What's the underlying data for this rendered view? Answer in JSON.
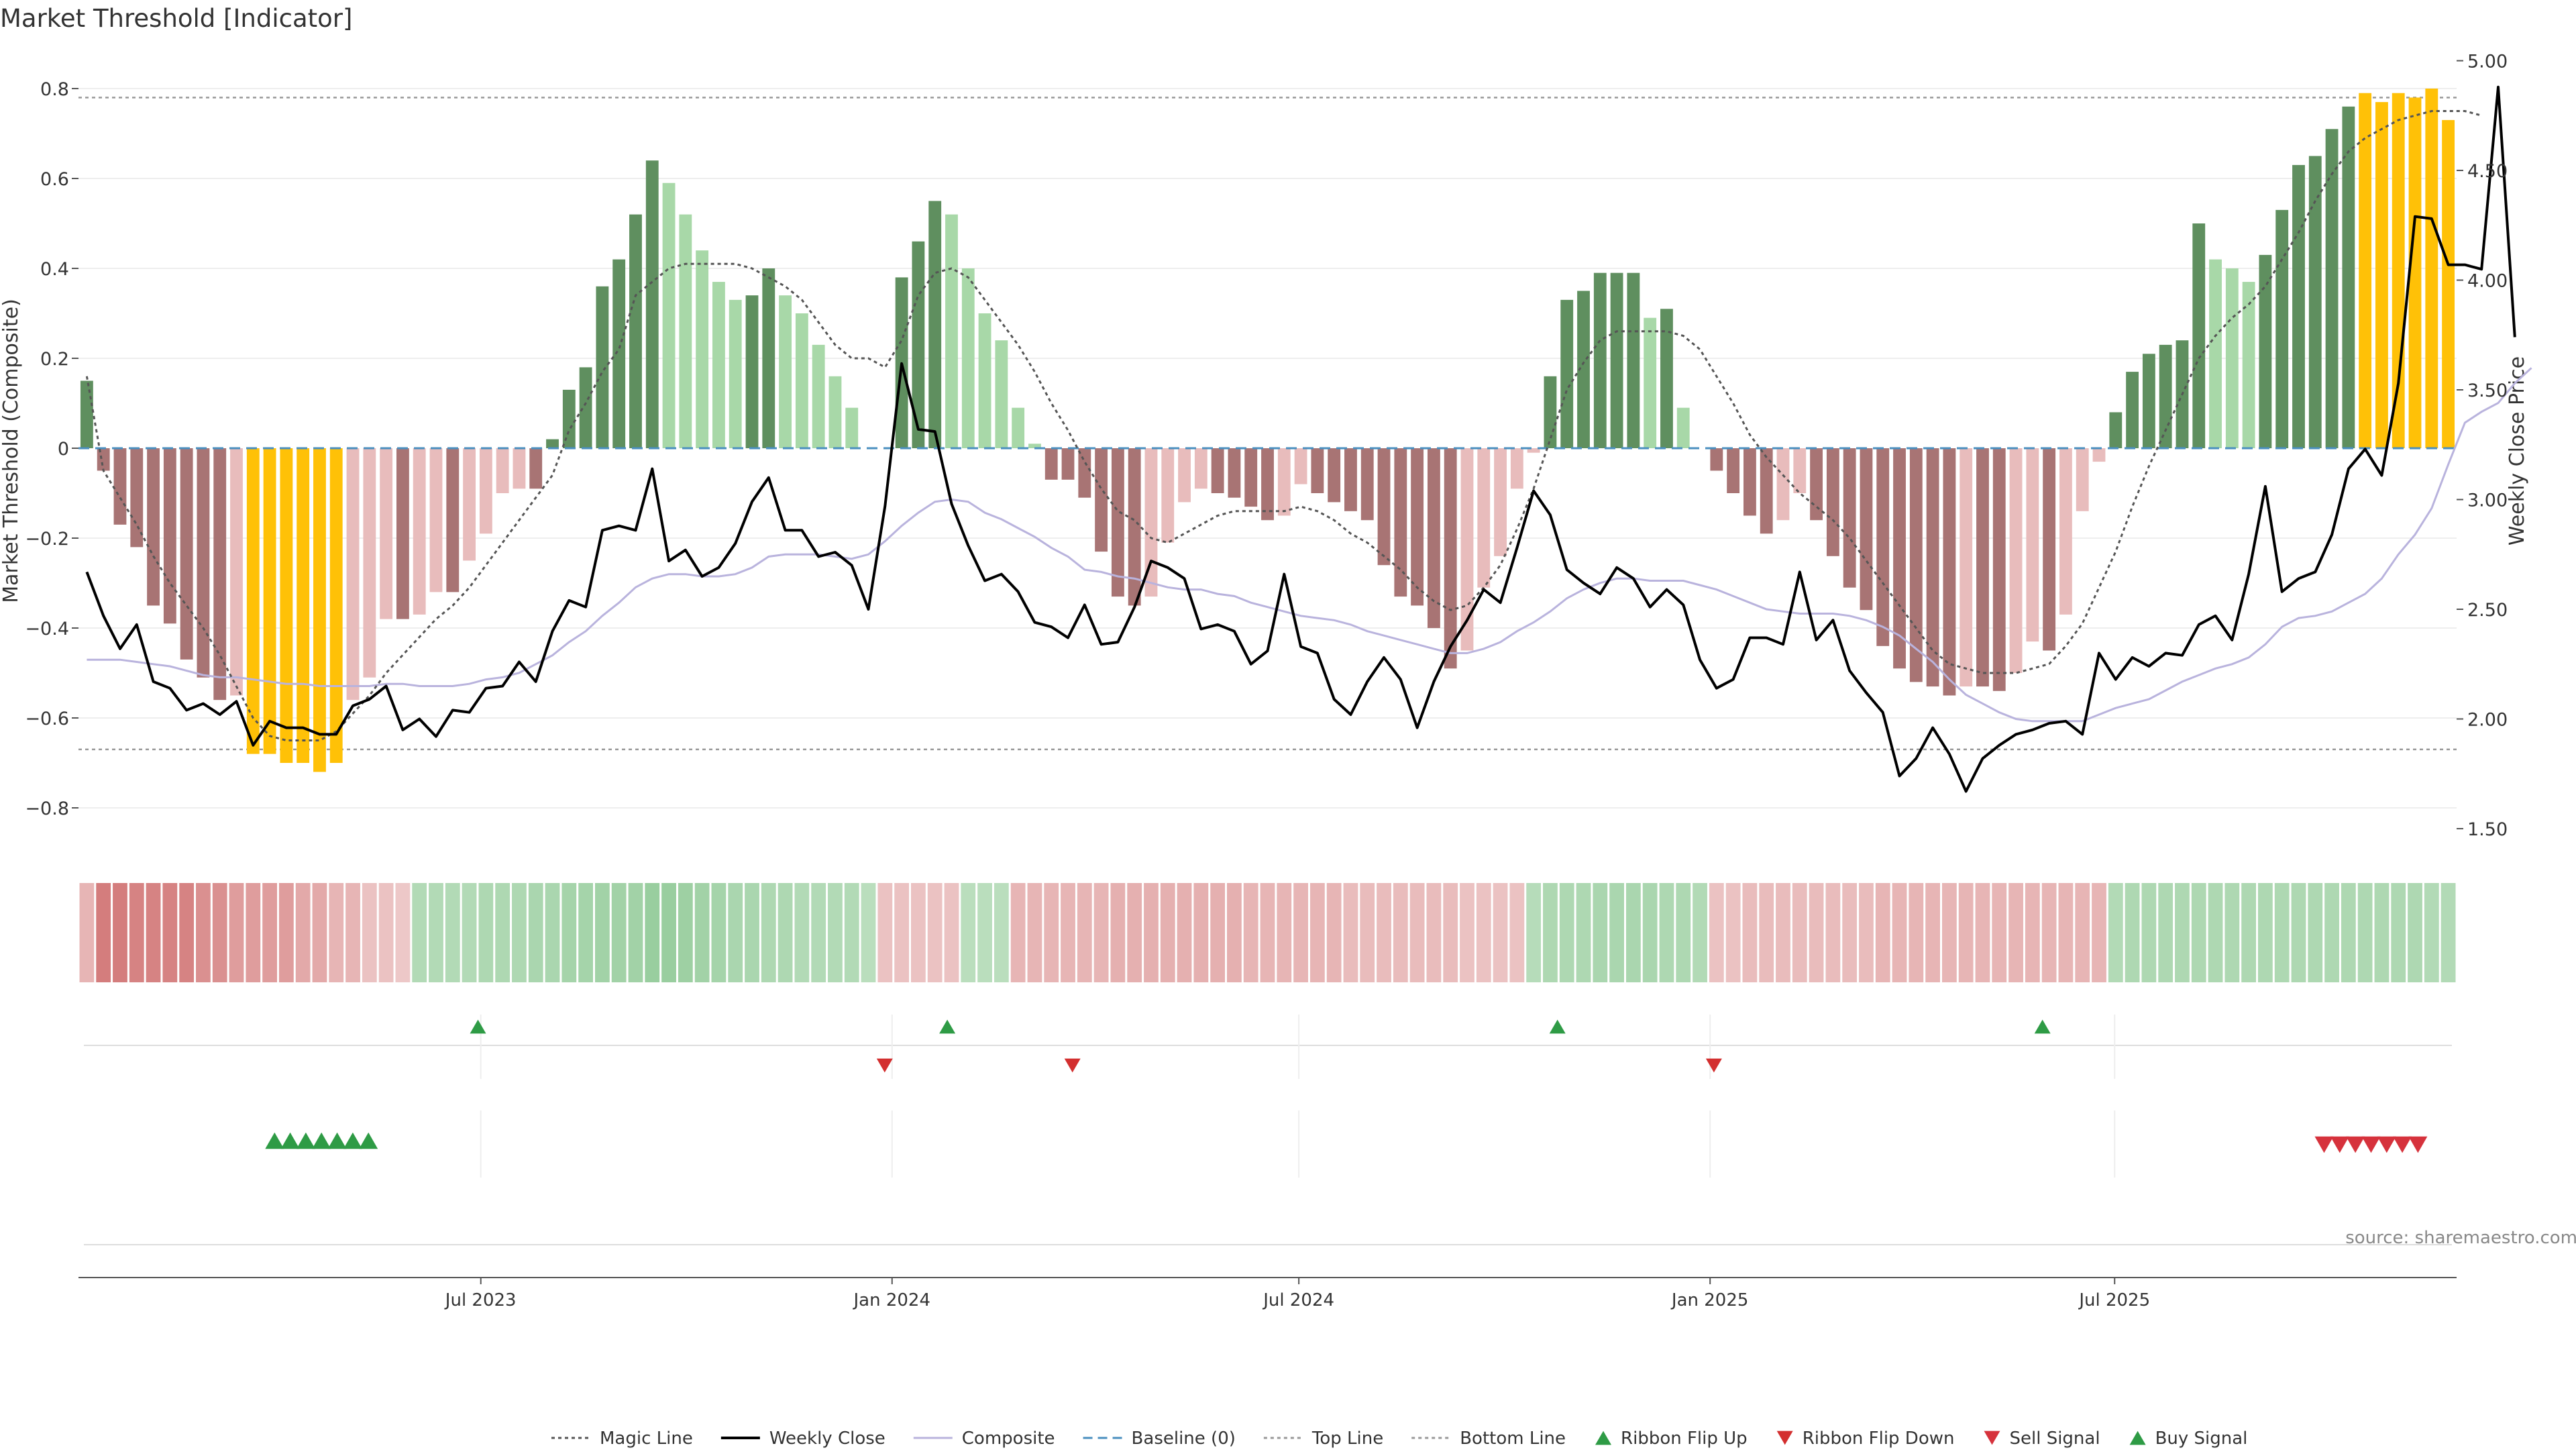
{
  "title": "Market Threshold [Indicator]",
  "source": "source: sharemaestro.com",
  "colors": {
    "bar_green_dark": "#5f8f5f",
    "bar_green_light": "#a8d8a8",
    "bar_red_dark": "#a87474",
    "bar_red_light": "#e8bcbc",
    "bar_extreme": "#ffc107",
    "weekly_close": "#000000",
    "composite": "#b9b3dd",
    "magic_line": "#555555",
    "baseline": "#4a8fbf",
    "threshold_line": "#999999",
    "ribbon_flip_up": "#2e9b45",
    "ribbon_flip_down": "#d32f2f",
    "sell_signal": "#d6323c",
    "buy_signal": "#2e9b45"
  },
  "chart_data": {
    "type": "bar",
    "title": "Market Threshold [Indicator]",
    "ylabel": "Market Threshold (Composite)",
    "ylabel_right": "Weekly Close Price",
    "ylim": [
      -0.9,
      0.86
    ],
    "ylim_right": [
      1.45,
      5.02
    ],
    "yticks": [
      "0.8",
      "0.6",
      "0.4",
      "0.2",
      "0",
      "−0.2",
      "−0.4",
      "−0.6",
      "−0.8"
    ],
    "yticks_right": [
      "5.00",
      "4.50",
      "4.00",
      "3.50",
      "3.00",
      "2.50",
      "2.00",
      "1.50"
    ],
    "x_start": "2023-01-02",
    "x_freq": "weekly",
    "x_end": "2025-11-24",
    "xticks": [
      {
        "label": "Jul 2023",
        "date": "2023-07-01"
      },
      {
        "label": "Jan 2024",
        "date": "2024-01-01"
      },
      {
        "label": "Jul 2024",
        "date": "2024-07-01"
      },
      {
        "label": "Jan 2025",
        "date": "2025-01-01"
      },
      {
        "label": "Jul 2025",
        "date": "2025-07-01"
      }
    ],
    "top_line": 0.78,
    "bottom_line": -0.67,
    "baseline": 0,
    "grid": true,
    "legend_position": "bottom-center",
    "composite": [
      0.15,
      -0.05,
      -0.17,
      -0.22,
      -0.35,
      -0.39,
      -0.47,
      -0.51,
      -0.56,
      -0.55,
      -0.68,
      -0.68,
      -0.7,
      -0.7,
      -0.72,
      -0.7,
      -0.56,
      -0.51,
      -0.38,
      -0.38,
      -0.37,
      -0.32,
      -0.32,
      -0.25,
      -0.19,
      -0.1,
      -0.09,
      -0.09,
      0.02,
      0.13,
      0.18,
      0.36,
      0.42,
      0.52,
      0.64,
      0.59,
      0.52,
      0.44,
      0.37,
      0.33,
      0.34,
      0.4,
      0.34,
      0.3,
      0.23,
      0.16,
      0.09,
      0,
      0,
      0.38,
      0.46,
      0.55,
      0.52,
      0.4,
      0.3,
      0.24,
      0.09,
      0.01,
      -0.07,
      -0.07,
      -0.11,
      -0.23,
      -0.33,
      -0.35,
      -0.33,
      -0.21,
      -0.12,
      -0.09,
      -0.1,
      -0.11,
      -0.13,
      -0.16,
      -0.15,
      -0.08,
      -0.1,
      -0.12,
      -0.14,
      -0.16,
      -0.26,
      -0.33,
      -0.35,
      -0.4,
      -0.49,
      -0.45,
      -0.31,
      -0.24,
      -0.09,
      -0.01,
      0.16,
      0.33,
      0.35,
      0.39,
      0.39,
      0.39,
      0.29,
      0.31,
      0.09,
      0,
      -0.05,
      -0.1,
      -0.15,
      -0.19,
      -0.16,
      -0.1,
      -0.16,
      -0.24,
      -0.31,
      -0.36,
      -0.44,
      -0.49,
      -0.52,
      -0.53,
      -0.55,
      -0.53,
      -0.53,
      -0.54,
      -0.5,
      -0.43,
      -0.45,
      -0.37,
      -0.14,
      -0.03,
      0.08,
      0.17,
      0.21,
      0.23,
      0.24,
      0.5,
      0.42,
      0.4,
      0.37,
      0.43,
      0.53,
      0.63,
      0.65,
      0.71,
      0.76,
      0.79,
      0.77,
      0.79,
      0.78,
      0.8,
      0.73
    ],
    "extreme_flags": [
      0,
      0,
      0,
      0,
      0,
      0,
      0,
      0,
      0,
      0,
      1,
      1,
      1,
      1,
      1,
      1,
      0,
      0,
      0,
      0,
      0,
      0,
      0,
      0,
      0,
      0,
      0,
      0,
      0,
      0,
      0,
      0,
      0,
      0,
      0,
      0,
      0,
      0,
      0,
      0,
      0,
      0,
      0,
      0,
      0,
      0,
      0,
      0,
      0,
      0,
      0,
      0,
      0,
      0,
      0,
      0,
      0,
      0,
      0,
      0,
      0,
      0,
      0,
      0,
      0,
      0,
      0,
      0,
      0,
      0,
      0,
      0,
      0,
      0,
      0,
      0,
      0,
      0,
      0,
      0,
      0,
      0,
      0,
      0,
      0,
      0,
      0,
      0,
      0,
      0,
      0,
      0,
      0,
      0,
      0,
      0,
      0,
      0,
      0,
      0,
      0,
      0,
      0,
      0,
      0,
      0,
      0,
      0,
      0,
      0,
      0,
      0,
      0,
      0,
      0,
      0,
      0,
      0,
      0,
      0,
      0,
      0,
      0,
      0,
      0,
      0,
      0,
      0,
      0,
      0,
      0,
      0,
      0,
      0,
      0,
      0,
      0,
      1,
      1,
      1,
      1,
      1,
      1,
      0
    ],
    "weekly_close": [
      2.67,
      2.47,
      2.32,
      2.43,
      2.17,
      2.14,
      2.04,
      2.07,
      2.02,
      2.08,
      1.88,
      1.99,
      1.96,
      1.96,
      1.93,
      1.93,
      2.06,
      2.09,
      2.15,
      1.95,
      2.0,
      1.92,
      2.04,
      2.03,
      2.14,
      2.15,
      2.26,
      2.17,
      2.4,
      2.54,
      2.51,
      2.86,
      2.88,
      2.86,
      3.14,
      2.72,
      2.77,
      2.65,
      2.69,
      2.8,
      2.99,
      3.1,
      2.86,
      2.86,
      2.74,
      2.76,
      2.7,
      2.5,
      2.97,
      3.62,
      3.32,
      3.31,
      2.98,
      2.79,
      2.63,
      2.66,
      2.58,
      2.44,
      2.42,
      2.37,
      2.52,
      2.34,
      2.35,
      2.51,
      2.72,
      2.69,
      2.64,
      2.41,
      2.43,
      2.4,
      2.25,
      2.31,
      2.66,
      2.33,
      2.3,
      2.09,
      2.02,
      2.17,
      2.28,
      2.18,
      1.96,
      2.17,
      2.33,
      2.45,
      2.59,
      2.53,
      2.78,
      3.04,
      2.93,
      2.68,
      2.62,
      2.57,
      2.69,
      2.64,
      2.51,
      2.59,
      2.52,
      2.27,
      2.14,
      2.18,
      2.37,
      2.37,
      2.34,
      2.67,
      2.36,
      2.45,
      2.22,
      2.12,
      2.03,
      1.74,
      1.82,
      1.96,
      1.84,
      1.67,
      1.82,
      1.88,
      1.93,
      1.95,
      1.98,
      1.99,
      1.93,
      2.3,
      2.18,
      2.28,
      2.24,
      2.3,
      2.29,
      2.43,
      2.47,
      2.36,
      2.66,
      3.06,
      2.58,
      2.64,
      2.67,
      2.84,
      3.14,
      3.23,
      3.11,
      3.53,
      4.29,
      4.28,
      4.07,
      4.07,
      4.05,
      4.88,
      3.74
    ],
    "composite_line": [
      2.27,
      2.27,
      2.27,
      2.26,
      2.25,
      2.24,
      2.22,
      2.2,
      2.19,
      2.19,
      2.18,
      2.17,
      2.16,
      2.16,
      2.15,
      2.15,
      2.15,
      2.15,
      2.16,
      2.16,
      2.15,
      2.15,
      2.15,
      2.16,
      2.18,
      2.19,
      2.21,
      2.25,
      2.29,
      2.35,
      2.4,
      2.47,
      2.53,
      2.6,
      2.64,
      2.66,
      2.66,
      2.65,
      2.65,
      2.66,
      2.69,
      2.74,
      2.75,
      2.75,
      2.75,
      2.74,
      2.73,
      2.75,
      2.81,
      2.88,
      2.94,
      2.99,
      3.0,
      2.99,
      2.94,
      2.91,
      2.87,
      2.83,
      2.78,
      2.74,
      2.68,
      2.67,
      2.65,
      2.64,
      2.62,
      2.6,
      2.59,
      2.59,
      2.57,
      2.56,
      2.53,
      2.51,
      2.49,
      2.47,
      2.46,
      2.45,
      2.43,
      2.4,
      2.38,
      2.36,
      2.34,
      2.32,
      2.3,
      2.3,
      2.32,
      2.35,
      2.4,
      2.44,
      2.49,
      2.55,
      2.59,
      2.62,
      2.64,
      2.64,
      2.63,
      2.63,
      2.63,
      2.61,
      2.59,
      2.56,
      2.53,
      2.5,
      2.49,
      2.48,
      2.48,
      2.48,
      2.47,
      2.45,
      2.42,
      2.38,
      2.32,
      2.26,
      2.18,
      2.11,
      2.07,
      2.03,
      2.0,
      1.99,
      1.99,
      1.99,
      1.99,
      2.02,
      2.05,
      2.07,
      2.09,
      2.13,
      2.17,
      2.2,
      2.23,
      2.25,
      2.28,
      2.34,
      2.42,
      2.46,
      2.47,
      2.49,
      2.53,
      2.57,
      2.64,
      2.75,
      2.84,
      2.96,
      3.16,
      3.35,
      3.4,
      3.44,
      3.53,
      3.6
    ],
    "magic_line": [
      0.16,
      -0.05,
      -0.11,
      -0.17,
      -0.24,
      -0.3,
      -0.35,
      -0.4,
      -0.46,
      -0.53,
      -0.6,
      -0.64,
      -0.65,
      -0.65,
      -0.65,
      -0.63,
      -0.59,
      -0.55,
      -0.5,
      -0.46,
      -0.42,
      -0.38,
      -0.35,
      -0.31,
      -0.26,
      -0.21,
      -0.16,
      -0.11,
      -0.06,
      0.04,
      0.1,
      0.17,
      0.22,
      0.34,
      0.37,
      0.4,
      0.41,
      0.41,
      0.41,
      0.41,
      0.4,
      0.38,
      0.36,
      0.33,
      0.28,
      0.23,
      0.2,
      0.2,
      0.18,
      0.24,
      0.34,
      0.39,
      0.4,
      0.38,
      0.33,
      0.28,
      0.23,
      0.17,
      0.1,
      0.04,
      -0.03,
      -0.09,
      -0.14,
      -0.16,
      -0.2,
      -0.21,
      -0.19,
      -0.17,
      -0.15,
      -0.14,
      -0.14,
      -0.14,
      -0.14,
      -0.13,
      -0.14,
      -0.16,
      -0.19,
      -0.21,
      -0.24,
      -0.27,
      -0.31,
      -0.34,
      -0.36,
      -0.35,
      -0.31,
      -0.26,
      -0.18,
      -0.09,
      0.02,
      0.13,
      0.19,
      0.24,
      0.26,
      0.26,
      0.26,
      0.26,
      0.25,
      0.22,
      0.16,
      0.1,
      0.03,
      -0.02,
      -0.06,
      -0.1,
      -0.13,
      -0.16,
      -0.2,
      -0.25,
      -0.3,
      -0.35,
      -0.4,
      -0.45,
      -0.48,
      -0.49,
      -0.5,
      -0.5,
      -0.5,
      -0.49,
      -0.48,
      -0.44,
      -0.39,
      -0.31,
      -0.23,
      -0.13,
      -0.04,
      0.04,
      0.12,
      0.2,
      0.25,
      0.29,
      0.32,
      0.36,
      0.42,
      0.48,
      0.55,
      0.61,
      0.66,
      0.69,
      0.71,
      0.73,
      0.74,
      0.75,
      0.75,
      0.75,
      0.74
    ],
    "ribbon": [
      -0.3,
      -0.75,
      -0.75,
      -0.7,
      -0.7,
      -0.7,
      -0.7,
      -0.6,
      -0.6,
      -0.5,
      -0.5,
      -0.5,
      -0.5,
      -0.4,
      -0.4,
      -0.3,
      -0.3,
      -0.2,
      -0.2,
      -0.15,
      0.4,
      0.4,
      0.4,
      0.4,
      0.45,
      0.45,
      0.45,
      0.5,
      0.5,
      0.55,
      0.55,
      0.6,
      0.6,
      0.6,
      0.7,
      0.7,
      0.65,
      0.6,
      0.55,
      0.5,
      0.5,
      0.45,
      0.45,
      0.4,
      0.4,
      0.4,
      0.4,
      0.3,
      -0.2,
      -0.2,
      -0.2,
      -0.2,
      -0.2,
      0.3,
      0.3,
      0.3,
      -0.3,
      -0.3,
      -0.3,
      -0.3,
      -0.3,
      -0.3,
      -0.35,
      -0.35,
      -0.35,
      -0.35,
      -0.35,
      -0.35,
      -0.35,
      -0.35,
      -0.3,
      -0.3,
      -0.3,
      -0.3,
      -0.3,
      -0.3,
      -0.25,
      -0.25,
      -0.25,
      -0.25,
      -0.25,
      -0.25,
      -0.25,
      -0.2,
      -0.2,
      -0.2,
      -0.2,
      0.35,
      0.45,
      0.45,
      0.45,
      0.5,
      0.5,
      0.5,
      0.5,
      0.45,
      0.45,
      0.4,
      -0.2,
      -0.2,
      -0.25,
      -0.25,
      -0.25,
      -0.25,
      -0.25,
      -0.25,
      -0.25,
      -0.25,
      -0.3,
      -0.3,
      -0.3,
      -0.3,
      -0.3,
      -0.3,
      -0.3,
      -0.3,
      -0.3,
      -0.3,
      -0.3,
      -0.3,
      -0.3,
      -0.3,
      0.4,
      0.45,
      0.45,
      0.45,
      0.45,
      0.45,
      0.45,
      0.45,
      0.45,
      0.45,
      0.45,
      0.45,
      0.45,
      0.45,
      0.45,
      0.45,
      0.45,
      0.45,
      0.45,
      0.4,
      0.4,
      0.4,
      0.4,
      0.35
    ],
    "ribbon_flip_up_dates": [
      "2023-06-26",
      "2024-01-22",
      "2024-10-21",
      "2025-05-26"
    ],
    "ribbon_flip_down_dates": [
      "2023-12-25",
      "2024-03-18",
      "2024-12-30"
    ],
    "buy_signal_dates": [
      "2023-03-27",
      "2023-04-03",
      "2023-04-10",
      "2023-04-17",
      "2023-04-24",
      "2023-05-01",
      "2023-05-08"
    ],
    "sell_signal_dates": [
      "2025-09-29",
      "2025-10-06",
      "2025-10-13",
      "2025-10-20",
      "2025-10-27",
      "2025-11-03",
      "2025-11-10"
    ]
  },
  "legend": [
    {
      "label": "Magic Line",
      "marker": "dotted-line",
      "color_key": "magic_line"
    },
    {
      "label": "Weekly Close",
      "marker": "solid-line",
      "color_key": "weekly_close"
    },
    {
      "label": "Composite",
      "marker": "solid-line",
      "color_key": "composite"
    },
    {
      "label": "Baseline (0)",
      "marker": "dashed-line",
      "color_key": "baseline"
    },
    {
      "label": "Top Line",
      "marker": "dotted-line",
      "color_key": "threshold_line"
    },
    {
      "label": "Bottom Line",
      "marker": "dotted-line",
      "color_key": "threshold_line"
    },
    {
      "label": "Ribbon Flip Up",
      "marker": "triangle-up",
      "color_key": "ribbon_flip_up"
    },
    {
      "label": "Ribbon Flip Down",
      "marker": "triangle-down",
      "color_key": "ribbon_flip_down"
    },
    {
      "label": "Sell Signal",
      "marker": "triangle-down",
      "color_key": "sell_signal"
    },
    {
      "label": "Buy Signal",
      "marker": "triangle-up",
      "color_key": "buy_signal"
    }
  ]
}
